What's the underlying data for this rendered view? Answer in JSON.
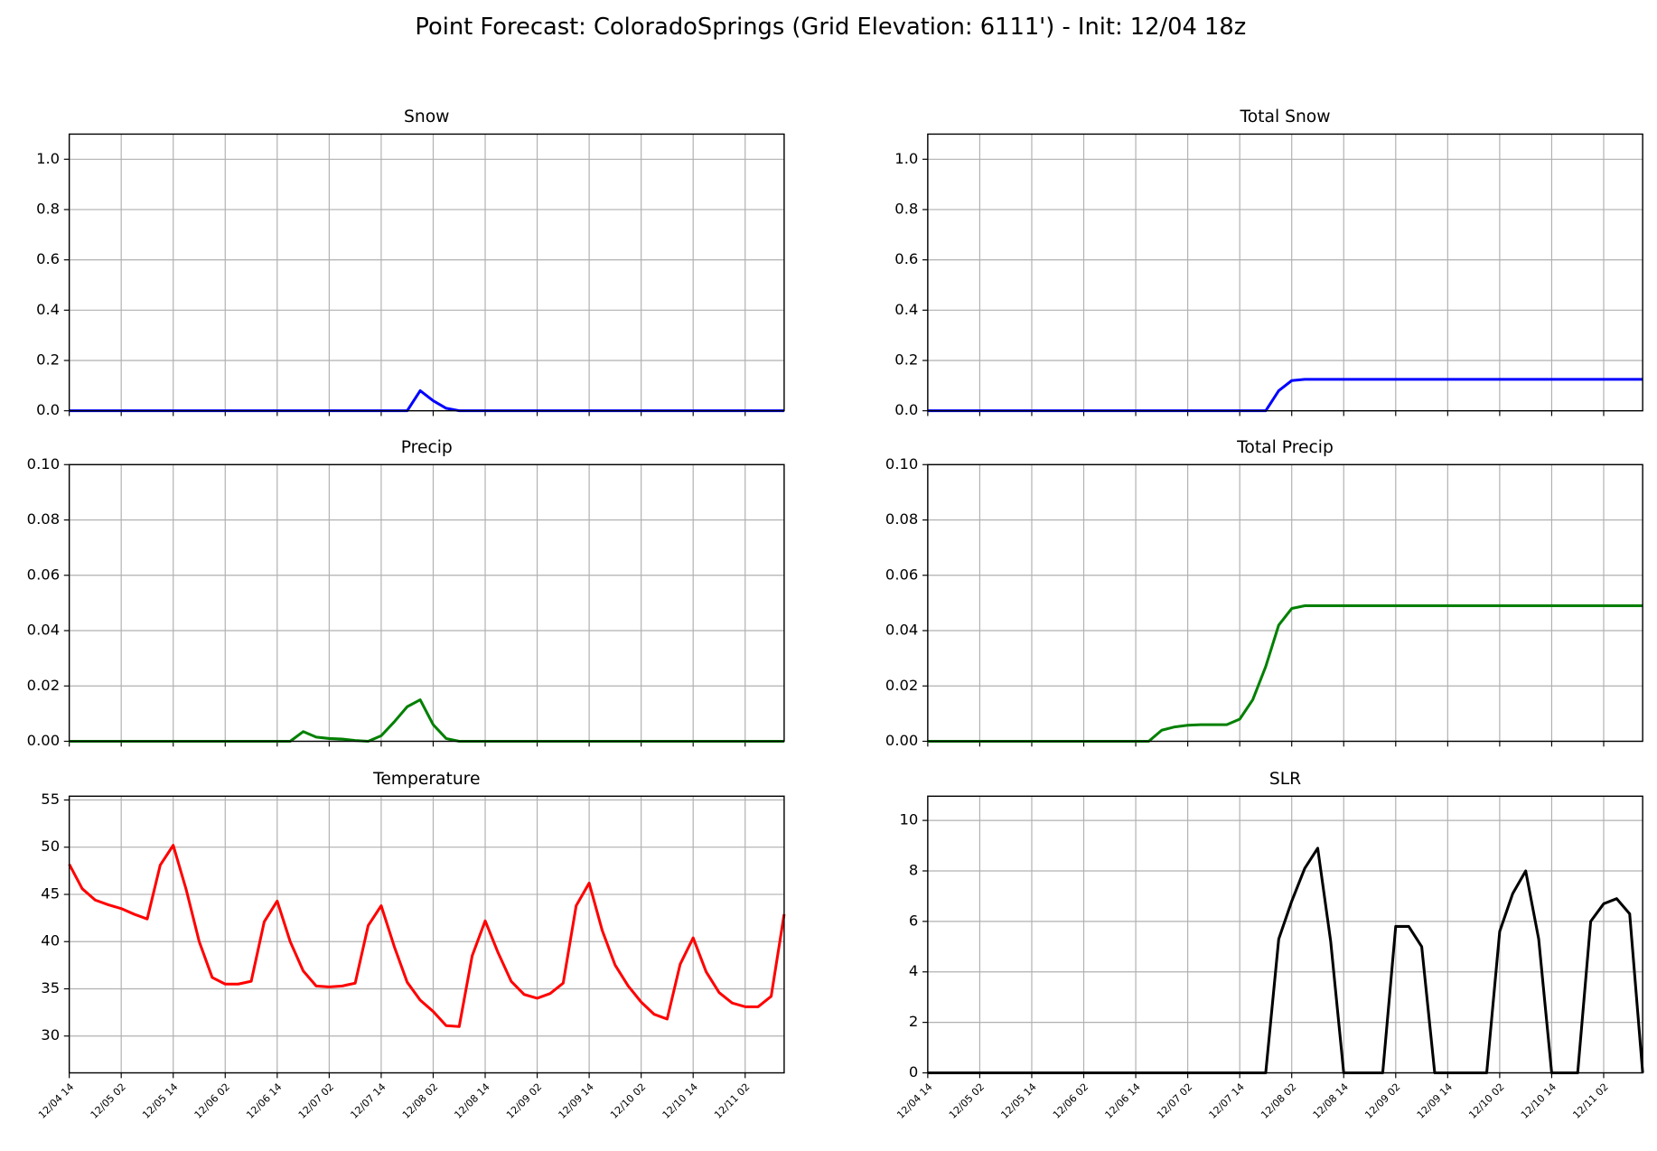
{
  "title": "Point Forecast: ColoradoSprings (Grid Elevation: 6111') - Init: 12/04 18z",
  "chart_data": [
    {
      "type": "line",
      "title": "Snow",
      "color": "#0000ff",
      "xlim": [
        0,
        165
      ],
      "ylim": [
        0,
        1.1
      ],
      "xticks": [
        0,
        12,
        24,
        36,
        48,
        60,
        72,
        84,
        96,
        108,
        120,
        132,
        144,
        156
      ],
      "yticks": [
        {
          "value": 0,
          "label": "0.0"
        },
        0.2,
        0.4,
        0.6,
        0.8,
        {
          "value": 1,
          "label": "1.0"
        }
      ],
      "x": [
        0,
        3,
        6,
        9,
        12,
        15,
        18,
        21,
        24,
        27,
        30,
        33,
        36,
        39,
        42,
        45,
        48,
        51,
        54,
        57,
        60,
        63,
        66,
        69,
        72,
        75,
        78,
        81,
        84,
        87,
        90,
        93,
        96,
        99,
        102,
        105,
        108,
        111,
        114,
        117,
        120,
        123,
        126,
        129,
        132,
        135,
        138,
        141,
        144,
        147,
        150,
        153,
        156,
        159,
        162,
        165
      ],
      "values": [
        0,
        0,
        0,
        0,
        0,
        0,
        0,
        0,
        0,
        0,
        0,
        0,
        0,
        0,
        0,
        0,
        0,
        0,
        0,
        0,
        0,
        0,
        0,
        0,
        0,
        0,
        0,
        0.08,
        0.04,
        0.01,
        0,
        0,
        0,
        0,
        0,
        0,
        0,
        0,
        0,
        0,
        0,
        0,
        0,
        0,
        0,
        0,
        0,
        0,
        0,
        0,
        0,
        0,
        0,
        0,
        0,
        0
      ]
    },
    {
      "type": "line",
      "title": "Total Snow",
      "color": "#0000ff",
      "xlim": [
        0,
        165
      ],
      "ylim": [
        0,
        1.1
      ],
      "xticks": [
        0,
        12,
        24,
        36,
        48,
        60,
        72,
        84,
        96,
        108,
        120,
        132,
        144,
        156
      ],
      "yticks": [
        {
          "value": 0,
          "label": "0.0"
        },
        0.2,
        0.4,
        0.6,
        0.8,
        {
          "value": 1,
          "label": "1.0"
        }
      ],
      "x": [
        0,
        3,
        6,
        9,
        12,
        15,
        18,
        21,
        24,
        27,
        30,
        33,
        36,
        39,
        42,
        45,
        48,
        51,
        54,
        57,
        60,
        63,
        66,
        69,
        72,
        75,
        78,
        81,
        84,
        87,
        90,
        93,
        96,
        99,
        102,
        105,
        108,
        111,
        114,
        117,
        120,
        123,
        126,
        129,
        132,
        135,
        138,
        141,
        144,
        147,
        150,
        153,
        156,
        159,
        162,
        165
      ],
      "values": [
        0,
        0,
        0,
        0,
        0,
        0,
        0,
        0,
        0,
        0,
        0,
        0,
        0,
        0,
        0,
        0,
        0,
        0,
        0,
        0,
        0,
        0,
        0,
        0,
        0,
        0,
        0,
        0.08,
        0.12,
        0.125,
        0.125,
        0.125,
        0.125,
        0.125,
        0.125,
        0.125,
        0.125,
        0.125,
        0.125,
        0.125,
        0.125,
        0.125,
        0.125,
        0.125,
        0.125,
        0.125,
        0.125,
        0.125,
        0.125,
        0.125,
        0.125,
        0.125,
        0.125,
        0.125,
        0.125,
        0.125
      ]
    },
    {
      "type": "line",
      "title": "Precip",
      "color": "#008000",
      "xlim": [
        0,
        165
      ],
      "ylim": [
        0,
        0.1
      ],
      "xticks": [
        0,
        12,
        24,
        36,
        48,
        60,
        72,
        84,
        96,
        108,
        120,
        132,
        144,
        156
      ],
      "yticks": [
        {
          "value": 0,
          "label": "0.00"
        },
        {
          "value": 0.02,
          "label": "0.02"
        },
        {
          "value": 0.04,
          "label": "0.04"
        },
        {
          "value": 0.06,
          "label": "0.06"
        },
        {
          "value": 0.08,
          "label": "0.08"
        },
        {
          "value": 0.1,
          "label": "0.10"
        }
      ],
      "x": [
        0,
        3,
        6,
        9,
        12,
        15,
        18,
        21,
        24,
        27,
        30,
        33,
        36,
        39,
        42,
        45,
        48,
        51,
        54,
        57,
        60,
        63,
        66,
        69,
        72,
        75,
        78,
        81,
        84,
        87,
        90,
        93,
        96,
        99,
        102,
        105,
        108,
        111,
        114,
        117,
        120,
        123,
        126,
        129,
        132,
        135,
        138,
        141,
        144,
        147,
        150,
        153,
        156,
        159,
        162,
        165
      ],
      "values": [
        0,
        0,
        0,
        0,
        0,
        0,
        0,
        0,
        0,
        0,
        0,
        0,
        0,
        0,
        0,
        0,
        0,
        0,
        0.0035,
        0.0015,
        0.001,
        0.0008,
        0.0003,
        0,
        0.002,
        0.007,
        0.0125,
        0.015,
        0.006,
        0.001,
        0,
        0,
        0,
        0,
        0,
        0,
        0,
        0,
        0,
        0,
        0,
        0,
        0,
        0,
        0,
        0,
        0,
        0,
        0,
        0,
        0,
        0,
        0,
        0,
        0,
        0
      ]
    },
    {
      "type": "line",
      "title": "Total Precip",
      "color": "#008000",
      "xlim": [
        0,
        165
      ],
      "ylim": [
        0,
        0.1
      ],
      "xticks": [
        0,
        12,
        24,
        36,
        48,
        60,
        72,
        84,
        96,
        108,
        120,
        132,
        144,
        156
      ],
      "yticks": [
        {
          "value": 0,
          "label": "0.00"
        },
        {
          "value": 0.02,
          "label": "0.02"
        },
        {
          "value": 0.04,
          "label": "0.04"
        },
        {
          "value": 0.06,
          "label": "0.06"
        },
        {
          "value": 0.08,
          "label": "0.08"
        },
        {
          "value": 0.1,
          "label": "0.10"
        }
      ],
      "x": [
        0,
        3,
        6,
        9,
        12,
        15,
        18,
        21,
        24,
        27,
        30,
        33,
        36,
        39,
        42,
        45,
        48,
        51,
        54,
        57,
        60,
        63,
        66,
        69,
        72,
        75,
        78,
        81,
        84,
        87,
        90,
        93,
        96,
        99,
        102,
        105,
        108,
        111,
        114,
        117,
        120,
        123,
        126,
        129,
        132,
        135,
        138,
        141,
        144,
        147,
        150,
        153,
        156,
        159,
        162,
        165
      ],
      "values": [
        0,
        0,
        0,
        0,
        0,
        0,
        0,
        0,
        0,
        0,
        0,
        0,
        0,
        0,
        0,
        0,
        0,
        0,
        0.004,
        0.0052,
        0.0058,
        0.006,
        0.006,
        0.006,
        0.008,
        0.015,
        0.027,
        0.042,
        0.048,
        0.049,
        0.049,
        0.049,
        0.049,
        0.049,
        0.049,
        0.049,
        0.049,
        0.049,
        0.049,
        0.049,
        0.049,
        0.049,
        0.049,
        0.049,
        0.049,
        0.049,
        0.049,
        0.049,
        0.049,
        0.049,
        0.049,
        0.049,
        0.049,
        0.049,
        0.049,
        0.049
      ]
    },
    {
      "type": "line",
      "title": "Temperature",
      "color": "#ff0000",
      "xlim": [
        0,
        165
      ],
      "ylim": [
        26.1,
        55.4
      ],
      "xticks": [
        {
          "value": 0,
          "label": "12/04 14"
        },
        {
          "value": 12,
          "label": "12/05 02"
        },
        {
          "value": 24,
          "label": "12/05 14"
        },
        {
          "value": 36,
          "label": "12/06 02"
        },
        {
          "value": 48,
          "label": "12/06 14"
        },
        {
          "value": 60,
          "label": "12/07 02"
        },
        {
          "value": 72,
          "label": "12/07 14"
        },
        {
          "value": 84,
          "label": "12/08 02"
        },
        {
          "value": 96,
          "label": "12/08 14"
        },
        {
          "value": 108,
          "label": "12/09 02"
        },
        {
          "value": 120,
          "label": "12/09 14"
        },
        {
          "value": 132,
          "label": "12/10 02"
        },
        {
          "value": 144,
          "label": "12/10 14"
        },
        {
          "value": 156,
          "label": "12/11 02"
        }
      ],
      "yticks": [
        30,
        35,
        40,
        45,
        50,
        55
      ],
      "x": [
        0,
        3,
        6,
        9,
        12,
        15,
        18,
        21,
        24,
        27,
        30,
        33,
        36,
        39,
        42,
        45,
        48,
        51,
        54,
        57,
        60,
        63,
        66,
        69,
        72,
        75,
        78,
        81,
        84,
        87,
        90,
        93,
        96,
        99,
        102,
        105,
        108,
        111,
        114,
        117,
        120,
        123,
        126,
        129,
        132,
        135,
        138,
        141,
        144,
        147,
        150,
        153,
        156,
        159,
        162,
        165
      ],
      "values": [
        48.2,
        45.6,
        44.4,
        43.9,
        43.5,
        42.9,
        42.4,
        48.1,
        50.2,
        45.5,
        40,
        36.2,
        35.5,
        35.5,
        35.8,
        42.1,
        44.3,
        40,
        36.9,
        35.3,
        35.2,
        35.3,
        35.6,
        41.7,
        43.8,
        39.5,
        35.7,
        33.8,
        32.6,
        31.1,
        31,
        38.5,
        42.2,
        38.8,
        35.8,
        34.4,
        34,
        34.5,
        35.6,
        43.8,
        46.2,
        41.2,
        37.5,
        35.3,
        33.6,
        32.3,
        31.8,
        37.6,
        40.4,
        36.8,
        34.6,
        33.5,
        33.1,
        33.1,
        34.2,
        42.9
      ]
    },
    {
      "type": "line",
      "title": "SLR",
      "color": "#000000",
      "xlim": [
        0,
        165
      ],
      "ylim": [
        0,
        10.96
      ],
      "xticks": [
        {
          "value": 0,
          "label": "12/04 14"
        },
        {
          "value": 12,
          "label": "12/05 02"
        },
        {
          "value": 24,
          "label": "12/05 14"
        },
        {
          "value": 36,
          "label": "12/06 02"
        },
        {
          "value": 48,
          "label": "12/06 14"
        },
        {
          "value": 60,
          "label": "12/07 02"
        },
        {
          "value": 72,
          "label": "12/07 14"
        },
        {
          "value": 84,
          "label": "12/08 02"
        },
        {
          "value": 96,
          "label": "12/08 14"
        },
        {
          "value": 108,
          "label": "12/09 02"
        },
        {
          "value": 120,
          "label": "12/09 14"
        },
        {
          "value": 132,
          "label": "12/10 02"
        },
        {
          "value": 144,
          "label": "12/10 14"
        },
        {
          "value": 156,
          "label": "12/11 02"
        }
      ],
      "yticks": [
        0,
        2,
        4,
        6,
        8,
        10
      ],
      "x": [
        0,
        3,
        6,
        9,
        12,
        15,
        18,
        21,
        24,
        27,
        30,
        33,
        36,
        39,
        42,
        45,
        48,
        51,
        54,
        57,
        60,
        63,
        66,
        69,
        72,
        75,
        78,
        81,
        84,
        87,
        90,
        93,
        96,
        99,
        102,
        105,
        108,
        111,
        114,
        117,
        120,
        123,
        126,
        129,
        132,
        135,
        138,
        141,
        144,
        147,
        150,
        153,
        156,
        159,
        162,
        165
      ],
      "values": [
        0,
        0,
        0,
        0,
        0,
        0,
        0,
        0,
        0,
        0,
        0,
        0,
        0,
        0,
        0,
        0,
        0,
        0,
        0,
        0,
        0,
        0,
        0,
        0,
        0,
        0,
        0,
        5.3,
        6.8,
        8.1,
        8.9,
        5.2,
        0,
        0,
        0,
        0,
        5.8,
        5.8,
        5,
        0,
        0,
        0,
        0,
        0,
        5.6,
        7.1,
        8,
        5.3,
        0,
        0,
        0,
        6,
        6.7,
        6.9,
        6.3,
        0
      ]
    }
  ]
}
